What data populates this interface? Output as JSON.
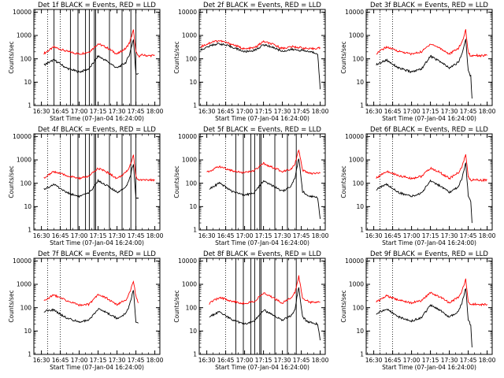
{
  "chart_data": [
    {
      "type": "line",
      "title": "Det 1f BLACK = Events, RED = LLD",
      "xlabel": "Start Time (07-Jan-04 16:24:00)",
      "ylabel": "Counts/sec",
      "x_range": [
        "16:24",
        "18:04"
      ],
      "ylim": [
        1,
        13000
      ],
      "y_scale": "log",
      "x_tick_labels": [
        "16:30",
        "16:45",
        "17:00",
        "17:15",
        "17:30",
        "17:45",
        "18:00"
      ],
      "y_tick_labels": [
        "1",
        "10",
        "100",
        "1000",
        "10000"
      ],
      "vertical_lines": [
        "16:40",
        "16:53",
        "16:59",
        "17:05",
        "17:08",
        "17:12",
        "17:13",
        "17:24",
        "17:34",
        "17:41",
        "17:45"
      ],
      "series": [
        {
          "color": "#ff0000",
          "x": [
            "16:32",
            "16:40",
            "16:50",
            "17:00",
            "17:08",
            "17:15",
            "17:22",
            "17:30",
            "17:37",
            "17:40",
            "17:43",
            "17:45",
            "17:47",
            "17:50",
            "17:55",
            "18:00"
          ],
          "values": [
            170,
            320,
            210,
            160,
            200,
            440,
            300,
            160,
            280,
            500,
            1700,
            190,
            130,
            145,
            135,
            140
          ]
        },
        {
          "color": "#000000",
          "x": [
            "16:32",
            "16:40",
            "16:50",
            "17:00",
            "17:08",
            "17:15",
            "17:22",
            "17:30",
            "17:37",
            "17:40",
            "17:43",
            "17:45",
            "17:47"
          ],
          "values": [
            55,
            90,
            40,
            27,
            38,
            130,
            80,
            40,
            70,
            160,
            700,
            22,
            24
          ]
        }
      ]
    },
    {
      "type": "line",
      "title": "Det 2f BLACK = Events, RED = LLD",
      "xlabel": "Start Time (07-Jan-04 16:24:00)",
      "ylabel": "Counts/sec",
      "x_range": [
        "16:24",
        "18:04"
      ],
      "ylim": [
        1,
        13000
      ],
      "y_scale": "log",
      "x_tick_labels": [
        "16:30",
        "16:45",
        "17:00",
        "17:15",
        "17:30",
        "17:45",
        "18:00"
      ],
      "y_tick_labels": [
        "1",
        "10",
        "100",
        "1000",
        "10000"
      ],
      "vertical_lines": [],
      "series": [
        {
          "color": "#ff0000",
          "x": [
            "16:25",
            "16:35",
            "16:40",
            "16:50",
            "17:00",
            "17:08",
            "17:15",
            "17:22",
            "17:30",
            "17:37",
            "17:45",
            "17:52",
            "18:00"
          ],
          "values": [
            330,
            550,
            600,
            420,
            260,
            300,
            550,
            420,
            280,
            330,
            300,
            260,
            300
          ]
        },
        {
          "color": "#000000",
          "x": [
            "16:25",
            "16:35",
            "16:40",
            "16:50",
            "17:00",
            "17:08",
            "17:15",
            "17:22",
            "17:30",
            "17:37",
            "17:45",
            "17:52",
            "17:58",
            "18:00"
          ],
          "values": [
            240,
            400,
            450,
            320,
            200,
            230,
            400,
            320,
            210,
            250,
            230,
            200,
            170,
            5
          ]
        }
      ]
    },
    {
      "type": "line",
      "title": "Det 3f BLACK = Events, RED = LLD",
      "xlabel": "Start Time (07-Jan-04 16:24:00)",
      "ylabel": "Counts/sec",
      "x_range": [
        "16:24",
        "18:04"
      ],
      "ylim": [
        1,
        13000
      ],
      "y_scale": "log",
      "x_tick_labels": [
        "16:30",
        "16:45",
        "17:00",
        "17:15",
        "17:30",
        "17:45",
        "18:00"
      ],
      "y_tick_labels": [
        "1",
        "10",
        "100",
        "1000",
        "10000"
      ],
      "vertical_lines": [],
      "series": [
        {
          "color": "#ff0000",
          "x": [
            "16:32",
            "16:40",
            "16:50",
            "17:00",
            "17:08",
            "17:15",
            "17:22",
            "17:30",
            "17:37",
            "17:40",
            "17:43",
            "17:45",
            "17:47",
            "17:50",
            "17:55",
            "18:00"
          ],
          "values": [
            170,
            320,
            210,
            160,
            200,
            440,
            300,
            160,
            280,
            500,
            1700,
            190,
            130,
            145,
            135,
            140
          ]
        },
        {
          "color": "#000000",
          "x": [
            "16:32",
            "16:40",
            "16:50",
            "17:00",
            "17:08",
            "17:15",
            "17:22",
            "17:30",
            "17:37",
            "17:40",
            "17:43",
            "17:45",
            "17:47",
            "17:48"
          ],
          "values": [
            55,
            90,
            40,
            27,
            38,
            130,
            80,
            40,
            70,
            160,
            700,
            30,
            18,
            2
          ]
        }
      ]
    },
    {
      "type": "line",
      "title": "Det 4f BLACK = Events, RED = LLD",
      "xlabel": "Start Time (07-Jan-04 16:24:00)",
      "ylabel": "Counts/sec",
      "x_range": [
        "16:24",
        "18:04"
      ],
      "ylim": [
        1,
        13000
      ],
      "y_scale": "log",
      "x_tick_labels": [
        "16:30",
        "16:45",
        "17:00",
        "17:15",
        "17:30",
        "17:45",
        "18:00"
      ],
      "y_tick_labels": [
        "1",
        "10",
        "100",
        "1000",
        "10000"
      ],
      "vertical_lines": [
        "16:53",
        "16:59",
        "17:05",
        "17:08",
        "17:12",
        "17:13",
        "17:24",
        "17:34",
        "17:41",
        "17:45"
      ],
      "series": [
        {
          "color": "#ff0000",
          "x": [
            "16:32",
            "16:40",
            "16:50",
            "17:00",
            "17:08",
            "17:15",
            "17:22",
            "17:30",
            "17:37",
            "17:40",
            "17:43",
            "17:45",
            "17:47",
            "17:50",
            "17:55",
            "18:00"
          ],
          "values": [
            170,
            320,
            210,
            160,
            200,
            440,
            300,
            160,
            280,
            500,
            1700,
            190,
            130,
            145,
            135,
            140
          ]
        },
        {
          "color": "#000000",
          "x": [
            "16:32",
            "16:40",
            "16:50",
            "17:00",
            "17:08",
            "17:15",
            "17:22",
            "17:30",
            "17:37",
            "17:40",
            "17:43",
            "17:45",
            "17:47"
          ],
          "values": [
            55,
            90,
            40,
            27,
            38,
            130,
            80,
            40,
            70,
            160,
            700,
            22,
            24
          ]
        }
      ]
    },
    {
      "type": "line",
      "title": "Det 5f BLACK = Events, RED = LLD",
      "xlabel": "Start Time (07-Jan-04 16:24:00)",
      "ylabel": "Counts/sec",
      "x_range": [
        "16:24",
        "18:04"
      ],
      "ylim": [
        1,
        13000
      ],
      "y_scale": "log",
      "x_tick_labels": [
        "16:30",
        "16:45",
        "17:00",
        "17:15",
        "17:30",
        "17:45",
        "18:00"
      ],
      "y_tick_labels": [
        "1",
        "10",
        "100",
        "1000",
        "10000"
      ],
      "vertical_lines": [
        "16:53",
        "16:59",
        "17:05",
        "17:08",
        "17:12",
        "17:13",
        "17:24",
        "17:34",
        "17:41"
      ],
      "series": [
        {
          "color": "#ff0000",
          "x": [
            "16:30",
            "16:40",
            "16:50",
            "17:00",
            "17:08",
            "17:15",
            "17:22",
            "17:30",
            "17:37",
            "17:40",
            "17:43",
            "17:46",
            "17:52",
            "18:00"
          ],
          "values": [
            300,
            520,
            350,
            280,
            350,
            700,
            480,
            320,
            420,
            700,
            2600,
            350,
            260,
            270
          ]
        },
        {
          "color": "#000000",
          "x": [
            "16:32",
            "16:40",
            "16:50",
            "17:00",
            "17:08",
            "17:15",
            "17:22",
            "17:30",
            "17:37",
            "17:40",
            "17:43",
            "17:46",
            "17:50",
            "17:58",
            "18:00"
          ],
          "values": [
            60,
            100,
            45,
            30,
            40,
            130,
            80,
            45,
            75,
            170,
            1200,
            45,
            30,
            25,
            3
          ]
        }
      ]
    },
    {
      "type": "line",
      "title": "Det 6f BLACK = Events, RED = LLD",
      "xlabel": "Start Time (07-Jan-04 16:24:00)",
      "ylabel": "Counts/sec",
      "x_range": [
        "16:24",
        "18:04"
      ],
      "ylim": [
        1,
        13000
      ],
      "y_scale": "log",
      "x_tick_labels": [
        "16:30",
        "16:45",
        "17:00",
        "17:15",
        "17:30",
        "17:45",
        "18:00"
      ],
      "y_tick_labels": [
        "1",
        "10",
        "100",
        "1000",
        "10000"
      ],
      "vertical_lines": [],
      "series": [
        {
          "color": "#ff0000",
          "x": [
            "16:32",
            "16:40",
            "16:50",
            "17:00",
            "17:08",
            "17:15",
            "17:22",
            "17:30",
            "17:37",
            "17:40",
            "17:43",
            "17:45",
            "17:47",
            "17:50",
            "17:55",
            "18:00"
          ],
          "values": [
            170,
            320,
            210,
            160,
            200,
            440,
            300,
            160,
            280,
            500,
            1700,
            190,
            130,
            145,
            135,
            140
          ]
        },
        {
          "color": "#000000",
          "x": [
            "16:32",
            "16:40",
            "16:50",
            "17:00",
            "17:08",
            "17:15",
            "17:22",
            "17:30",
            "17:37",
            "17:40",
            "17:43",
            "17:45",
            "17:47",
            "17:48"
          ],
          "values": [
            55,
            90,
            40,
            27,
            38,
            130,
            80,
            40,
            70,
            160,
            700,
            30,
            18,
            2
          ]
        }
      ]
    },
    {
      "type": "line",
      "title": "Det 7f BLACK = Events, RED = LLD",
      "xlabel": "Start Time (07-Jan-04 16:24:00)",
      "ylabel": "Counts/sec",
      "x_range": [
        "16:24",
        "18:04"
      ],
      "ylim": [
        1,
        13000
      ],
      "y_scale": "log",
      "x_tick_labels": [
        "16:30",
        "16:45",
        "17:00",
        "17:15",
        "17:30",
        "17:45",
        "18:00"
      ],
      "y_tick_labels": [
        "1",
        "10",
        "100",
        "1000",
        "10000"
      ],
      "vertical_lines": [],
      "series": [
        {
          "color": "#ff0000",
          "x": [
            "16:32",
            "16:40",
            "16:50",
            "17:00",
            "17:08",
            "17:15",
            "17:22",
            "17:30",
            "17:37",
            "17:40",
            "17:43",
            "17:45",
            "17:47"
          ],
          "values": [
            200,
            350,
            200,
            130,
            140,
            380,
            250,
            130,
            220,
            420,
            1400,
            300,
            160
          ]
        },
        {
          "color": "#000000",
          "x": [
            "16:32",
            "16:40",
            "16:50",
            "17:00",
            "17:08",
            "17:15",
            "17:22",
            "17:30",
            "17:37",
            "17:40",
            "17:43",
            "17:45",
            "17:47"
          ],
          "values": [
            70,
            80,
            35,
            25,
            30,
            90,
            60,
            35,
            55,
            130,
            600,
            25,
            22
          ]
        }
      ]
    },
    {
      "type": "line",
      "title": "Det 8f BLACK = Events, RED = LLD",
      "xlabel": "Start Time (07-Jan-04 16:24:00)",
      "ylabel": "Counts/sec",
      "x_range": [
        "16:24",
        "18:04"
      ],
      "ylim": [
        1,
        13000
      ],
      "y_scale": "log",
      "x_tick_labels": [
        "16:30",
        "16:45",
        "17:00",
        "17:15",
        "17:30",
        "17:45",
        "18:00"
      ],
      "y_tick_labels": [
        "1",
        "10",
        "100",
        "1000",
        "10000"
      ],
      "vertical_lines": [
        "16:53",
        "16:59",
        "17:05",
        "17:08",
        "17:12",
        "17:13",
        "17:24",
        "17:34",
        "17:41"
      ],
      "series": [
        {
          "color": "#ff0000",
          "x": [
            "16:32",
            "16:40",
            "16:50",
            "17:00",
            "17:08",
            "17:15",
            "17:22",
            "17:30",
            "17:37",
            "17:40",
            "17:43",
            "17:46",
            "17:52",
            "18:00"
          ],
          "values": [
            150,
            280,
            190,
            150,
            190,
            420,
            280,
            160,
            260,
            450,
            2300,
            260,
            170,
            170
          ]
        },
        {
          "color": "#000000",
          "x": [
            "16:32",
            "16:40",
            "16:50",
            "17:00",
            "17:08",
            "17:15",
            "17:22",
            "17:30",
            "17:37",
            "17:40",
            "17:43",
            "17:46",
            "17:50",
            "17:58",
            "18:00"
          ],
          "values": [
            40,
            70,
            30,
            20,
            28,
            80,
            50,
            30,
            45,
            90,
            800,
            40,
            25,
            20,
            4
          ]
        }
      ]
    },
    {
      "type": "line",
      "title": "Det 9f BLACK = Events, RED = LLD",
      "xlabel": "Start Time (07-Jan-04 16:24:00)",
      "ylabel": "Counts/sec",
      "x_range": [
        "16:24",
        "18:04"
      ],
      "ylim": [
        1,
        13000
      ],
      "y_scale": "log",
      "x_tick_labels": [
        "16:30",
        "16:45",
        "17:00",
        "17:15",
        "17:30",
        "17:45",
        "18:00"
      ],
      "y_tick_labels": [
        "1",
        "10",
        "100",
        "1000",
        "10000"
      ],
      "vertical_lines": [],
      "series": [
        {
          "color": "#ff0000",
          "x": [
            "16:32",
            "16:40",
            "16:50",
            "17:00",
            "17:08",
            "17:15",
            "17:22",
            "17:30",
            "17:37",
            "17:40",
            "17:43",
            "17:45",
            "17:47",
            "17:50",
            "17:55",
            "18:00"
          ],
          "values": [
            170,
            320,
            210,
            160,
            200,
            440,
            300,
            160,
            280,
            500,
            1700,
            190,
            130,
            145,
            135,
            140
          ]
        },
        {
          "color": "#000000",
          "x": [
            "16:32",
            "16:40",
            "16:50",
            "17:00",
            "17:08",
            "17:15",
            "17:22",
            "17:30",
            "17:37",
            "17:40",
            "17:43",
            "17:45",
            "17:47",
            "17:48"
          ],
          "values": [
            55,
            90,
            40,
            27,
            38,
            130,
            80,
            40,
            70,
            160,
            700,
            30,
            18,
            2
          ]
        }
      ]
    }
  ]
}
